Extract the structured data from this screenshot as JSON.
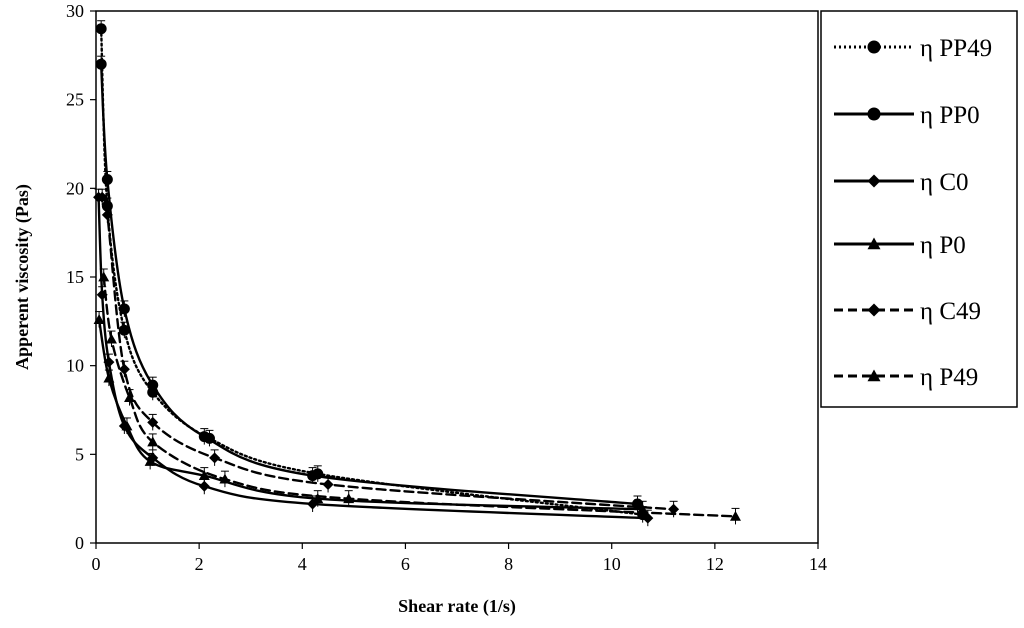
{
  "chart_data": {
    "type": "line",
    "title": "",
    "xlabel": "Shear rate (1/s)",
    "ylabel": "Apperent viscosity (Pas)",
    "xlim": [
      0,
      14
    ],
    "ylim": [
      0,
      30
    ],
    "xticks": [
      0,
      2,
      4,
      6,
      8,
      10,
      12,
      14
    ],
    "yticks": [
      0,
      5,
      10,
      15,
      20,
      25,
      30
    ],
    "grid": false,
    "legend_position": "right",
    "series": [
      {
        "name": "η PP49",
        "line_style": "dotted",
        "marker": "circle",
        "points": [
          [
            0.1,
            29.0
          ],
          [
            0.22,
            19.0
          ],
          [
            0.55,
            12.0
          ],
          [
            1.1,
            8.5
          ],
          [
            2.2,
            5.9
          ],
          [
            4.3,
            3.9
          ],
          [
            10.6,
            1.6
          ]
        ]
      },
      {
        "name": "η PP0",
        "line_style": "solid",
        "marker": "circle",
        "points": [
          [
            0.1,
            27.0
          ],
          [
            0.22,
            20.5
          ],
          [
            0.55,
            13.2
          ],
          [
            1.1,
            8.9
          ],
          [
            2.1,
            6.0
          ],
          [
            4.2,
            3.8
          ],
          [
            10.5,
            2.2
          ]
        ]
      },
      {
        "name": "η C0",
        "line_style": "solid",
        "marker": "diamond",
        "points": [
          [
            0.05,
            19.5
          ],
          [
            0.12,
            14.0
          ],
          [
            0.25,
            10.2
          ],
          [
            0.55,
            6.6
          ],
          [
            1.1,
            4.8
          ],
          [
            2.1,
            3.2
          ],
          [
            4.2,
            2.2
          ],
          [
            10.7,
            1.4
          ]
        ]
      },
      {
        "name": "η P0",
        "line_style": "solid",
        "marker": "triangle",
        "points": [
          [
            0.06,
            12.6
          ],
          [
            0.25,
            9.3
          ],
          [
            0.6,
            6.6
          ],
          [
            1.05,
            4.6
          ],
          [
            2.1,
            3.8
          ],
          [
            4.3,
            2.5
          ],
          [
            10.6,
            1.9
          ]
        ]
      },
      {
        "name": "η C49",
        "line_style": "dashed",
        "marker": "diamond",
        "points": [
          [
            0.12,
            19.5
          ],
          [
            0.22,
            18.5
          ],
          [
            0.55,
            9.8
          ],
          [
            1.1,
            6.8
          ],
          [
            2.3,
            4.8
          ],
          [
            4.5,
            3.3
          ],
          [
            11.2,
            1.9
          ]
        ]
      },
      {
        "name": "η P49",
        "line_style": "dashed",
        "marker": "triangle",
        "points": [
          [
            0.15,
            15.0
          ],
          [
            0.3,
            11.5
          ],
          [
            0.65,
            8.2
          ],
          [
            1.1,
            5.7
          ],
          [
            2.5,
            3.6
          ],
          [
            4.9,
            2.5
          ],
          [
            12.4,
            1.5
          ]
        ]
      }
    ]
  }
}
